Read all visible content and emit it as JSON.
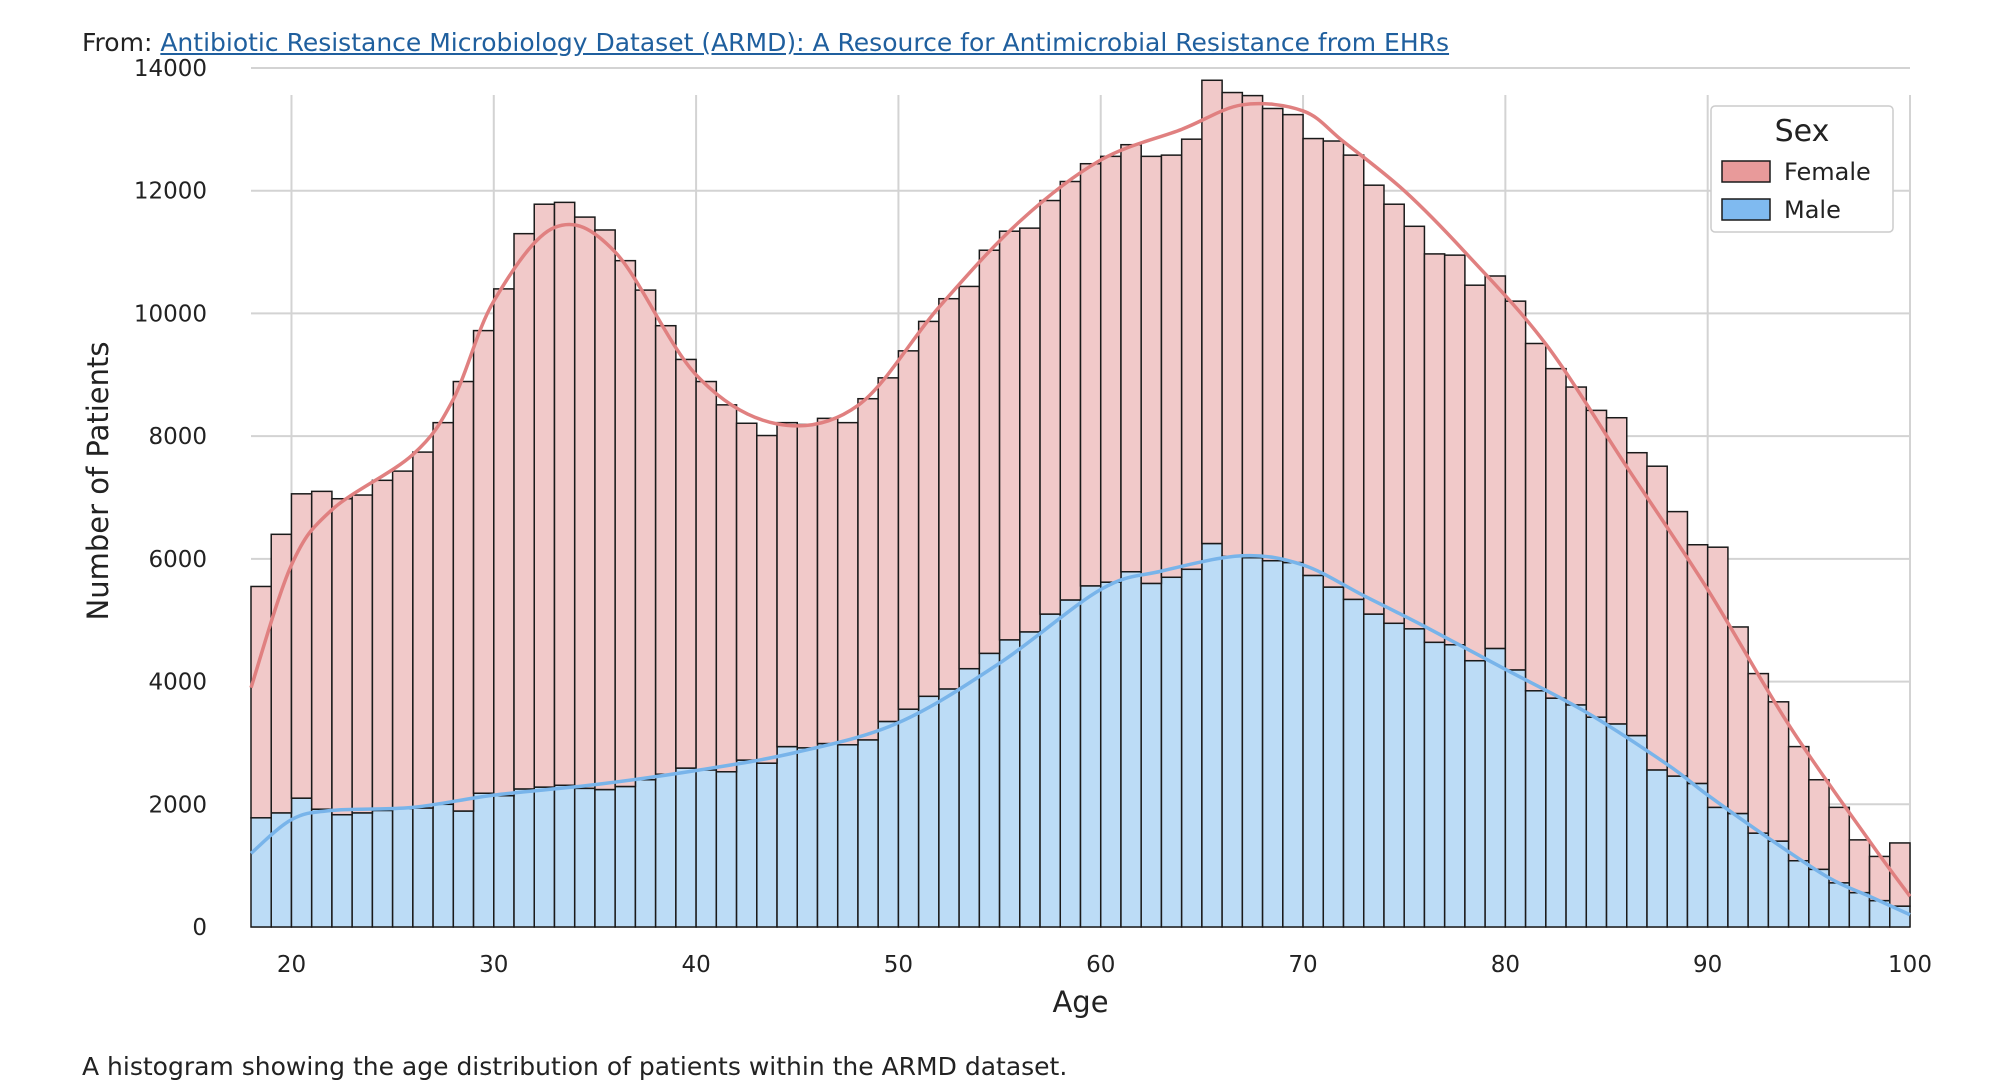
{
  "header": {
    "prefix": "From:",
    "link_text": "Antibiotic Resistance Microbiology Dataset (ARMD): A Resource for Antimicrobial Resistance from EHRs"
  },
  "caption": "A histogram showing the age distribution of patients within the ARMD dataset.",
  "colors": {
    "female_fill": "#f1c9c9",
    "male_fill": "#bcdcf6",
    "female_kde": "#e08080",
    "male_kde": "#78b4ea",
    "grid": "#d3d3d3",
    "bar_edge": "#1a1a1a"
  },
  "chart_data": {
    "type": "bar",
    "stacked": true,
    "xlabel": "Age",
    "ylabel": "Number of Patients",
    "xlim": [
      18,
      100
    ],
    "ylim": [
      0,
      14000
    ],
    "x_ticks": [
      20,
      30,
      40,
      50,
      60,
      70,
      80,
      90,
      100
    ],
    "y_ticks": [
      0,
      2000,
      4000,
      6000,
      8000,
      10000,
      12000,
      14000
    ],
    "grid": true,
    "legend": {
      "title": "Sex",
      "position": "top-right",
      "entries": [
        "Female",
        "Male"
      ]
    },
    "bin_start": [
      18,
      19,
      20,
      21,
      22,
      23,
      24,
      25,
      26,
      27,
      28,
      29,
      30,
      31,
      32,
      33,
      34,
      35,
      36,
      37,
      38,
      39,
      40,
      41,
      42,
      43,
      44,
      45,
      46,
      47,
      48,
      49,
      50,
      51,
      52,
      53,
      54,
      55,
      56,
      57,
      58,
      59,
      60,
      61,
      62,
      63,
      64,
      65,
      66,
      67,
      68,
      69,
      70,
      71,
      72,
      73,
      74,
      75,
      76,
      77,
      78,
      79,
      80,
      81,
      82,
      83,
      84,
      85,
      86,
      87,
      88,
      89,
      90,
      91,
      92,
      93,
      94,
      95,
      96,
      97,
      98,
      99
    ],
    "bin_width": 1,
    "series": [
      {
        "name": "Male",
        "values": [
          1780,
          1860,
          2100,
          1920,
          1830,
          1860,
          1900,
          1930,
          1940,
          2000,
          1890,
          2180,
          2140,
          2250,
          2280,
          2310,
          2260,
          2240,
          2290,
          2400,
          2490,
          2590,
          2560,
          2530,
          2720,
          2670,
          2940,
          2920,
          2990,
          2970,
          3050,
          3350,
          3550,
          3760,
          3880,
          4210,
          4460,
          4680,
          4810,
          5100,
          5330,
          5560,
          5620,
          5790,
          5600,
          5700,
          5830,
          6250,
          6040,
          6020,
          5970,
          5940,
          5730,
          5540,
          5340,
          5100,
          4950,
          4860,
          4640,
          4600,
          4340,
          4540,
          4190,
          3850,
          3730,
          3620,
          3420,
          3310,
          3120,
          2560,
          2460,
          2340,
          1950,
          1850,
          1530,
          1400,
          1080,
          940,
          720,
          560,
          430,
          340
        ]
      },
      {
        "name": "Female",
        "values": [
          3770,
          4540,
          4960,
          5180,
          5150,
          5180,
          5380,
          5500,
          5800,
          6220,
          7000,
          7540,
          8260,
          9050,
          9500,
          9500,
          9310,
          9120,
          8570,
          7980,
          7310,
          6660,
          6330,
          5980,
          5490,
          5340,
          5280,
          5270,
          5300,
          5250,
          5560,
          5600,
          5840,
          6110,
          6360,
          6230,
          6570,
          6660,
          6580,
          6740,
          6820,
          6880,
          6940,
          6960,
          6960,
          6880,
          7010,
          7550,
          7560,
          7530,
          7370,
          7300,
          7120,
          7270,
          7240,
          6990,
          6830,
          6560,
          6330,
          6350,
          6120,
          6070,
          6010,
          5660,
          5370,
          5180,
          5000,
          4990,
          4610,
          4950,
          4310,
          3890,
          4240,
          3040,
          2600,
          2270,
          1860,
          1460,
          1230,
          860,
          720,
          1030
        ]
      }
    ],
    "kde": [
      {
        "name": "Male",
        "x": [
          18,
          20,
          22,
          26,
          30,
          35,
          40,
          45,
          50,
          55,
          60,
          63,
          67,
          70,
          73,
          76,
          80,
          84,
          88,
          90,
          93,
          96,
          98,
          100
        ],
        "y": [
          1200,
          1750,
          1900,
          1950,
          2150,
          2320,
          2550,
          2850,
          3330,
          4300,
          5500,
          5800,
          6050,
          5900,
          5400,
          4900,
          4200,
          3500,
          2650,
          2150,
          1450,
          800,
          500,
          200
        ]
      },
      {
        "name": "Female",
        "x": [
          18,
          20,
          22,
          26,
          28,
          30,
          33,
          36,
          40,
          44,
          48,
          52,
          56,
          60,
          64,
          67,
          70,
          72,
          75,
          78,
          82,
          86,
          90,
          94,
          98,
          100
        ],
        "y": [
          3900,
          5900,
          6800,
          7700,
          8600,
          10200,
          11400,
          11000,
          9000,
          8200,
          8500,
          10100,
          11500,
          12500,
          13000,
          13400,
          13300,
          12800,
          12000,
          11000,
          9500,
          7500,
          5500,
          3300,
          1400,
          500
        ]
      }
    ]
  }
}
